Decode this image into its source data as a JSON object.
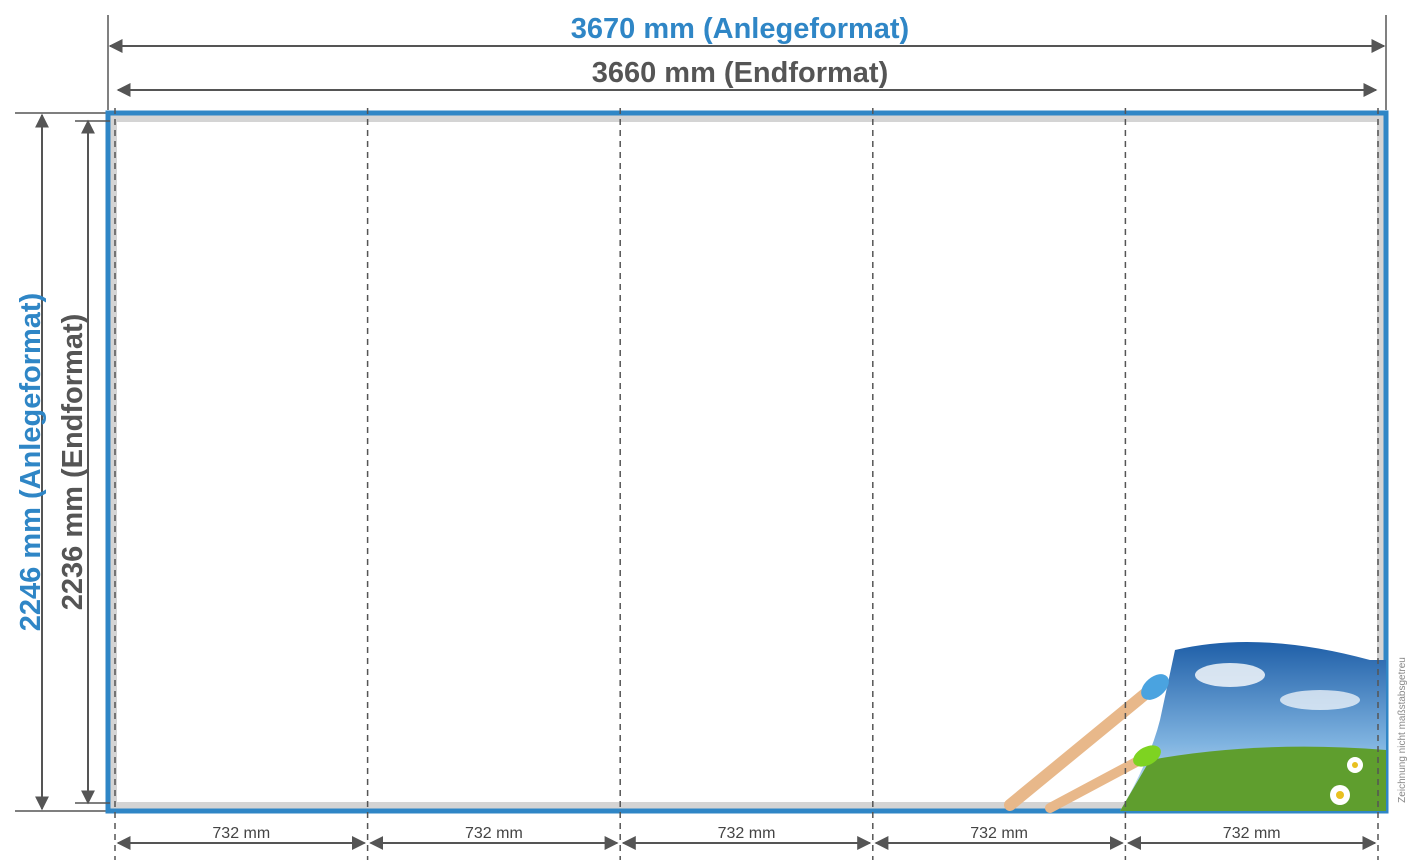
{
  "dimensions": {
    "width_bleed": "3670 mm (Anlegeformat)",
    "width_final": "3660 mm (Endformat)",
    "height_bleed": "2246 mm (Anlegeformat)",
    "height_final": "2236 mm (Endformat)"
  },
  "panels": [
    "732 mm",
    "732 mm",
    "732 mm",
    "732 mm",
    "732 mm"
  ],
  "note": "Zeichnung nicht maßstabsgetreu"
}
